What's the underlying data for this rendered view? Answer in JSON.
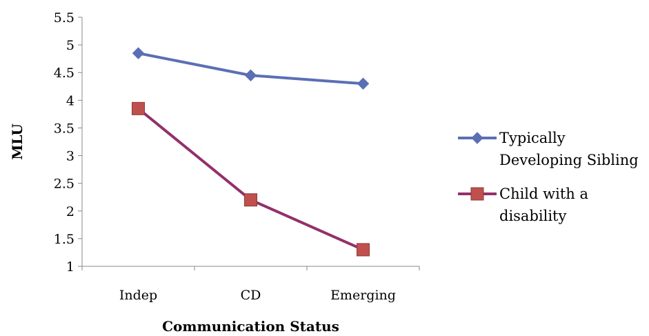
{
  "chart_data": {
    "type": "line",
    "categories": [
      "Indep",
      "CD",
      "Emerging"
    ],
    "series": [
      {
        "name": "Typically Developing Sibling",
        "name_lines": [
          "Typically",
          "Developing Sibling"
        ],
        "values": [
          4.85,
          4.45,
          4.3
        ],
        "color": "#5b6fb5",
        "line_color": "#5b6fb5",
        "marker": "diamond"
      },
      {
        "name": "Child with a disability",
        "name_lines": [
          "Child with a",
          "disability"
        ],
        "values": [
          3.85,
          2.2,
          1.3
        ],
        "color": "#c0504d",
        "line_color": "#93306a",
        "marker": "square"
      }
    ],
    "xlabel": "Communication Status",
    "ylabel": "MLU",
    "ylim": [
      1,
      5.5
    ],
    "yticks": [
      "1",
      "1.5",
      "2",
      "2.5",
      "3",
      "3.5",
      "4",
      "4.5",
      "5",
      "5.5"
    ],
    "grid": false,
    "legend_position": "right"
  }
}
